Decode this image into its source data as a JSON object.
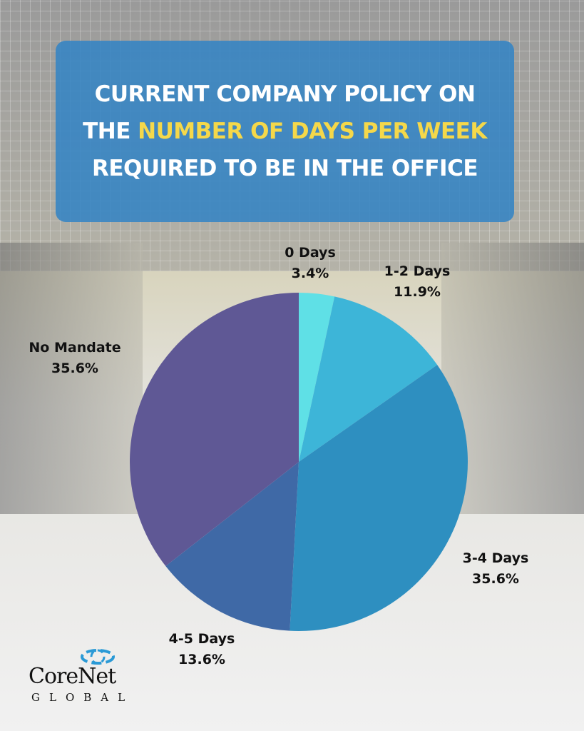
{
  "title": {
    "line1": "CURRENT COMPANY POLICY ON",
    "line2_prefix": "THE ",
    "line2_highlight": "NUMBER OF DAYS PER WEEK",
    "line3": "REQUIRED TO BE IN THE OFFICE",
    "highlight_color": "#f5d84a"
  },
  "chart_data": {
    "type": "pie",
    "start": "top",
    "direction": "clockwise",
    "slices": [
      {
        "label": "0 Days",
        "value": 3.4,
        "value_label": "3.4%",
        "color": "#5fe0e6"
      },
      {
        "label": "1-2 Days",
        "value": 11.9,
        "value_label": "11.9%",
        "color": "#3db5d8"
      },
      {
        "label": "3-4 Days",
        "value": 35.6,
        "value_label": "35.6%",
        "color": "#2e8fc0"
      },
      {
        "label": "4-5 Days",
        "value": 13.6,
        "value_label": "13.6%",
        "color": "#3f69a6"
      },
      {
        "label": "No Mandate",
        "value": 35.6,
        "value_label": "35.6%",
        "color": "#5f5895"
      }
    ]
  },
  "logo": {
    "name": "CoreNet",
    "sub": "GLOBAL",
    "mark_color": "#2a9ad6"
  }
}
